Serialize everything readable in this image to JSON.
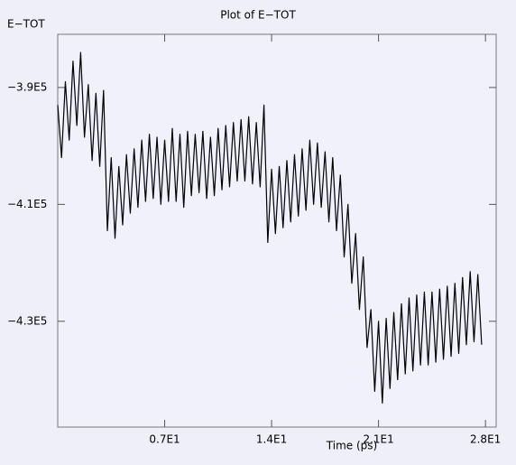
{
  "chart_data": {
    "type": "line",
    "title": "Plot of E−TOT",
    "y_label": "E−TOT",
    "x_label": "Time (ps)",
    "color": "#000000",
    "xlim": [
      0,
      28.7
    ],
    "ylim": [
      -448100,
      -380900
    ],
    "xticks": [
      {
        "value": 7,
        "label": "0.7E1"
      },
      {
        "value": 14,
        "label": "1.4E1"
      },
      {
        "value": 21,
        "label": "2.1E1"
      },
      {
        "value": 28,
        "label": "2.8E1"
      }
    ],
    "yticks": [
      {
        "value": -390000,
        "label": "−3.9E5"
      },
      {
        "value": -410000,
        "label": "−4.1E5"
      },
      {
        "value": -430000,
        "label": "−4.3E5"
      }
    ],
    "x": [
      0,
      0.25,
      0.5,
      0.75,
      1,
      1.25,
      1.5,
      1.75,
      2,
      2.25,
      2.5,
      2.75,
      3,
      3.25,
      3.5,
      3.75,
      4,
      4.25,
      4.5,
      4.75,
      5,
      5.25,
      5.5,
      5.75,
      6,
      6.25,
      6.5,
      6.75,
      7,
      7.25,
      7.5,
      7.75,
      8,
      8.25,
      8.5,
      8.75,
      9,
      9.25,
      9.5,
      9.75,
      10,
      10.25,
      10.5,
      10.75,
      11,
      11.25,
      11.5,
      11.75,
      12,
      12.25,
      12.5,
      12.75,
      13,
      13.25,
      13.5,
      13.75,
      14,
      14.25,
      14.5,
      14.75,
      15,
      15.25,
      15.5,
      15.75,
      16,
      16.25,
      16.5,
      16.75,
      17,
      17.25,
      17.5,
      17.75,
      18,
      18.25,
      18.5,
      18.75,
      19,
      19.25,
      19.5,
      19.75,
      20,
      20.25,
      20.5,
      20.75,
      21,
      21.25,
      21.5,
      21.75,
      22,
      22.25,
      22.5,
      22.75,
      23,
      23.25,
      23.5,
      23.75,
      24,
      24.25,
      24.5,
      24.75,
      25,
      25.25,
      25.5,
      25.75,
      26,
      26.25,
      26.5,
      26.75,
      27,
      27.25,
      27.5,
      27.75
    ],
    "values": [
      -393000,
      -402000,
      -389000,
      -399000,
      -385500,
      -396500,
      -384000,
      -398500,
      -389500,
      -402500,
      -391000,
      -403500,
      -390500,
      -414500,
      -402000,
      -415800,
      -403500,
      -413500,
      -401500,
      -411500,
      -400500,
      -410500,
      -399000,
      -409500,
      -398000,
      -409000,
      -398500,
      -410000,
      -399000,
      -409500,
      -397000,
      -409500,
      -398000,
      -410500,
      -397500,
      -408500,
      -398000,
      -408000,
      -397500,
      -409000,
      -398500,
      -408500,
      -397000,
      -407500,
      -396500,
      -407000,
      -396000,
      -406000,
      -395500,
      -406000,
      -395000,
      -406500,
      -396000,
      -407000,
      -393000,
      -416500,
      -404000,
      -415000,
      -403500,
      -414000,
      -402500,
      -413000,
      -401500,
      -412000,
      -400500,
      -411000,
      -399000,
      -410000,
      -399500,
      -410500,
      -401000,
      -413000,
      -402000,
      -414500,
      -405000,
      -419000,
      -410000,
      -423500,
      -415000,
      -428000,
      -419000,
      -434500,
      -428000,
      -442000,
      -430000,
      -444000,
      -429500,
      -441500,
      -428500,
      -440000,
      -427000,
      -439000,
      -426000,
      -438500,
      -425500,
      -437500,
      -425000,
      -437500,
      -425000,
      -437000,
      -424500,
      -436500,
      -424000,
      -436000,
      -423500,
      -435500,
      -422500,
      -434000,
      -421500,
      -433500,
      -422000,
      -434000
    ]
  }
}
